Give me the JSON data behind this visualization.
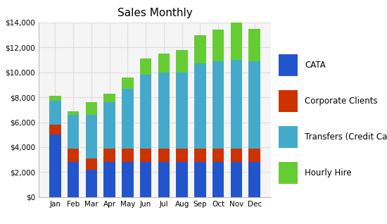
{
  "title": "Sales Monthly",
  "months": [
    "Jan",
    "Feb",
    "Mar",
    "Apr",
    "May",
    "Jun",
    "Jul",
    "Aug",
    "Sep",
    "Oct",
    "Nov",
    "Dec"
  ],
  "series": {
    "CATA": [
      5000,
      2800,
      2200,
      2800,
      2800,
      2800,
      2800,
      2800,
      2800,
      2800,
      2800,
      2800
    ],
    "Corporate Clients": [
      800,
      1100,
      900,
      1100,
      1100,
      1100,
      1100,
      1100,
      1100,
      1100,
      1100,
      1100
    ],
    "Transfers (Credit Cards)": [
      1900,
      2700,
      3500,
      3700,
      4800,
      5900,
      6100,
      6100,
      6800,
      7000,
      7100,
      7000
    ],
    "Hourly Hire": [
      400,
      300,
      1000,
      700,
      900,
      1300,
      1500,
      1800,
      2300,
      2500,
      3200,
      2600
    ]
  },
  "colors": {
    "CATA": "#2255CC",
    "Corporate Clients": "#CC3300",
    "Transfers (Credit Cards)": "#44AACC",
    "Hourly Hire": "#66CC33"
  },
  "ylim": [
    0,
    14000
  ],
  "ytick_vals": [
    0,
    2000,
    4000,
    6000,
    8000,
    10000,
    12000,
    14000
  ],
  "bg_color": "#ffffff",
  "plot_bg": "#f5f5f5",
  "grid_color": "#dddddd",
  "title_fontsize": 11,
  "legend_fontsize": 8.5,
  "tick_fontsize": 7.5
}
